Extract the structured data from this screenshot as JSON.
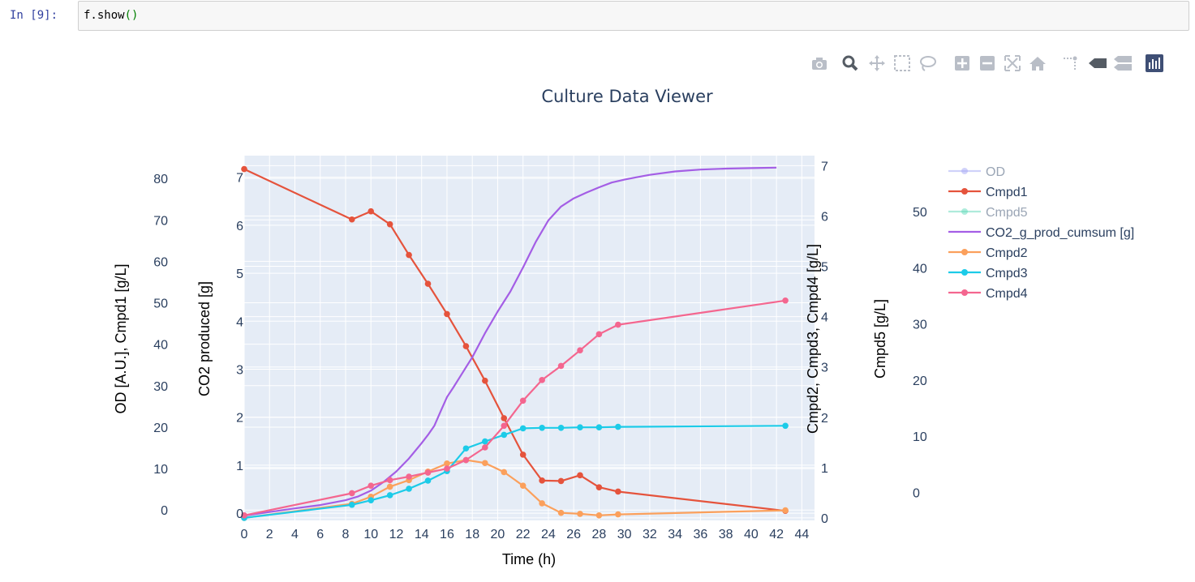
{
  "notebook": {
    "prompt": "In [9]:",
    "code_main": "f.show",
    "code_parens": "()"
  },
  "modebar": {
    "icons": [
      "camera-icon",
      "zoom-icon",
      "pan-icon",
      "box-select-icon",
      "lasso-icon",
      "zoom-in-icon",
      "zoom-out-icon",
      "autoscale-icon",
      "reset-axes-icon",
      "spike-lines-icon",
      "hover-closest-icon",
      "hover-compare-icon",
      "plotly-logo-icon"
    ],
    "active_color": "#555c64",
    "inactive_color": "#b9bec7",
    "logo_color": "#3f4f75"
  },
  "chart_data": {
    "type": "line",
    "title": "Culture Data Viewer",
    "xlabel": "Time (h)",
    "xlim": [
      0,
      45
    ],
    "x_ticks": [
      "0",
      "2",
      "4",
      "6",
      "8",
      "10",
      "12",
      "14",
      "16",
      "18",
      "20",
      "22",
      "24",
      "26",
      "28",
      "30",
      "32",
      "34",
      "36",
      "38",
      "40",
      "42",
      "44"
    ],
    "grid": true,
    "legend_position": "right",
    "axes": {
      "y_left_outer": {
        "label": "OD [A.U.], Cmpd1 [g/L]",
        "ylim": [
          -2.5,
          85.5
        ],
        "ticks": [
          "0",
          "10",
          "20",
          "30",
          "40",
          "50",
          "60",
          "70",
          "80"
        ]
      },
      "y_left_inner": {
        "label": "CO2 produced [g]",
        "ylim": [
          -0.15,
          7.45
        ],
        "ticks": [
          "0",
          "1",
          "2",
          "3",
          "4",
          "5",
          "6",
          "7"
        ]
      },
      "y_right_inner": {
        "label": "Cmpd2, Cmpd3, Cmpd4 [g/L]",
        "ylim": [
          -0.05,
          7.2
        ],
        "ticks": [
          "0",
          "1",
          "2",
          "3",
          "4",
          "5",
          "6",
          "7"
        ]
      },
      "y_right_outer": {
        "label": "Cmpd5 [g/L]",
        "ylim": [
          -5,
          60
        ],
        "ticks": [
          "0",
          "10",
          "20",
          "30",
          "40",
          "50"
        ]
      }
    },
    "series": [
      {
        "name": "OD",
        "axis": "y_left_outer",
        "color": "#a3a6f5",
        "mode": "lines+markers",
        "visible": false,
        "x": [],
        "y": []
      },
      {
        "name": "Cmpd1",
        "axis": "y_left_inner",
        "color": "#e5533c",
        "mode": "lines+markers",
        "x": [
          0,
          8.5,
          10,
          11.5,
          13,
          14.5,
          16,
          17.5,
          19,
          20.5,
          22,
          23.5,
          25,
          26.5,
          28,
          29.5,
          42.7
        ],
        "y": [
          7.17,
          6.12,
          6.29,
          6.02,
          5.38,
          4.78,
          4.15,
          3.48,
          2.76,
          1.98,
          1.22,
          0.68,
          0.67,
          0.79,
          0.54,
          0.45,
          0.05
        ]
      },
      {
        "name": "Cmpd5",
        "axis": "y_right_outer",
        "color": "#5fd9b9",
        "mode": "lines+markers",
        "visible": false,
        "x": [],
        "y": []
      },
      {
        "name": "CO2_g_prod_cumsum [g]",
        "axis": "y_left_inner",
        "color": "#a45ee5",
        "mode": "lines",
        "x": [
          0,
          4,
          6,
          8,
          9,
          10,
          11,
          12,
          13,
          14,
          14.5,
          15,
          15.5,
          16,
          16.5,
          17,
          17.5,
          18,
          19,
          20,
          21,
          22,
          23,
          24,
          25,
          26,
          27,
          28,
          29,
          30,
          31,
          32,
          34,
          36,
          38,
          40,
          42
        ],
        "y": [
          -0.05,
          0.1,
          0.17,
          0.27,
          0.35,
          0.47,
          0.65,
          0.87,
          1.14,
          1.46,
          1.63,
          1.82,
          2.12,
          2.42,
          2.62,
          2.83,
          3.04,
          3.25,
          3.75,
          4.2,
          4.62,
          5.12,
          5.65,
          6.1,
          6.39,
          6.56,
          6.68,
          6.79,
          6.89,
          6.95,
          7.0,
          7.05,
          7.12,
          7.16,
          7.18,
          7.19,
          7.2
        ]
      },
      {
        "name": "Cmpd2",
        "axis": "y_right_inner",
        "color": "#fba05c",
        "mode": "lines+markers",
        "x": [
          0,
          8.5,
          10,
          11.5,
          13,
          14.5,
          16,
          17.5,
          19,
          20.5,
          22,
          23.5,
          25,
          26.5,
          28,
          29.5,
          42.7
        ],
        "y": [
          0.0,
          0.28,
          0.42,
          0.62,
          0.75,
          0.92,
          1.08,
          1.15,
          1.09,
          0.91,
          0.64,
          0.29,
          0.1,
          0.08,
          0.05,
          0.07,
          0.15
        ]
      },
      {
        "name": "Cmpd3",
        "axis": "y_right_inner",
        "color": "#1ccbe8",
        "mode": "lines+markers",
        "x": [
          0,
          8.5,
          10,
          11.5,
          13,
          14.5,
          16,
          17.5,
          19,
          20.5,
          22,
          23.5,
          25,
          26.5,
          28,
          29.5,
          42.7
        ],
        "y": [
          0.0,
          0.26,
          0.35,
          0.45,
          0.58,
          0.74,
          0.93,
          1.38,
          1.52,
          1.65,
          1.78,
          1.79,
          1.79,
          1.8,
          1.8,
          1.81,
          1.83
        ]
      },
      {
        "name": "Cmpd4",
        "axis": "y_right_inner",
        "color": "#f4668f",
        "mode": "lines+markers",
        "x": [
          0,
          8.5,
          10,
          11.5,
          13,
          14.5,
          16,
          17.5,
          19,
          20.5,
          22,
          23.5,
          25,
          26.5,
          28,
          29.5,
          42.7
        ],
        "y": [
          0.05,
          0.49,
          0.64,
          0.75,
          0.82,
          0.9,
          0.98,
          1.15,
          1.4,
          1.83,
          2.33,
          2.74,
          3.02,
          3.33,
          3.65,
          3.84,
          4.32
        ]
      }
    ]
  }
}
